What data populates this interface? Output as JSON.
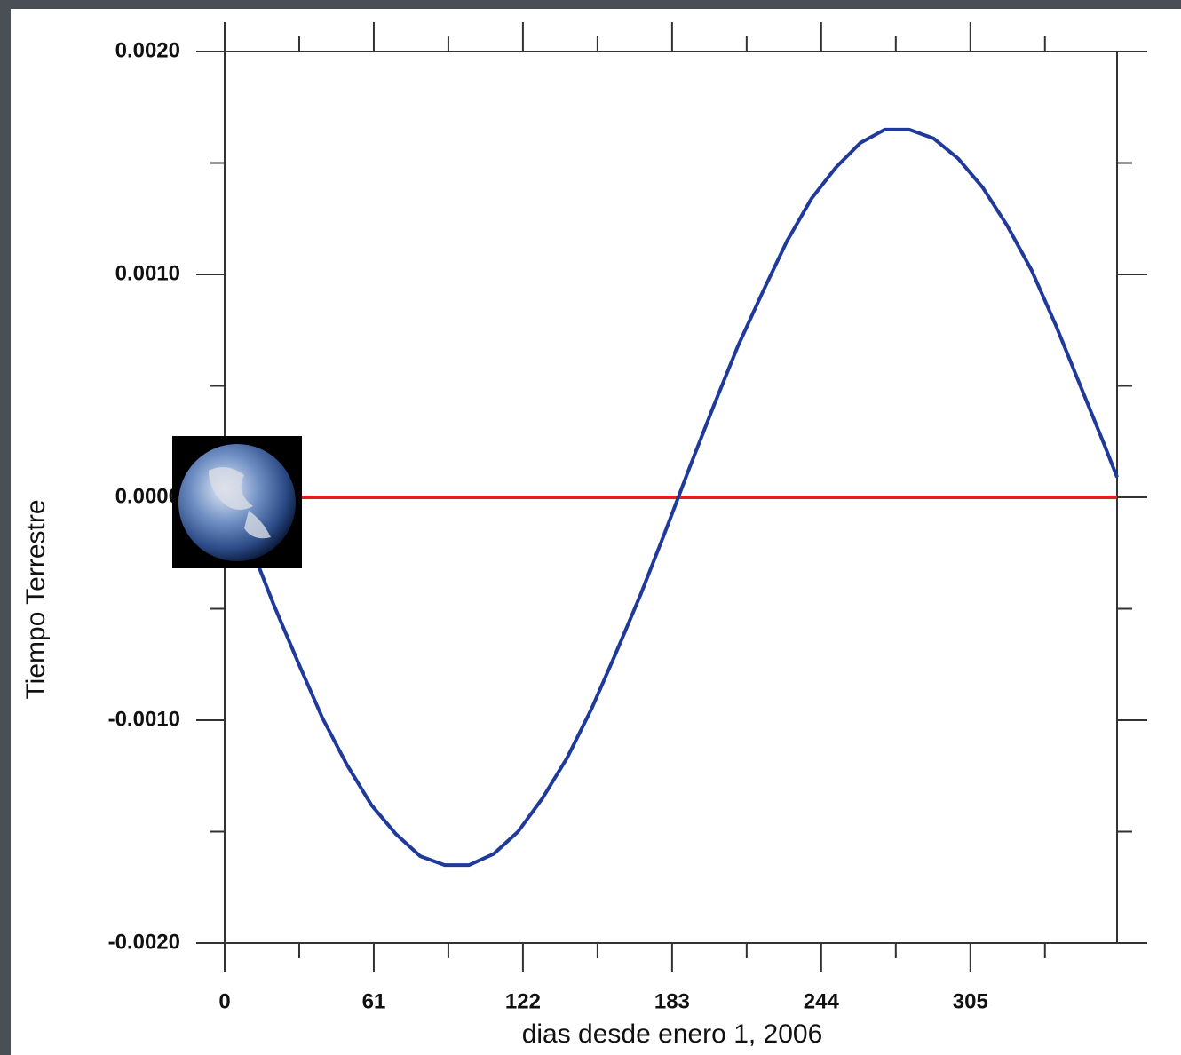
{
  "chart_data": {
    "type": "line",
    "ylabel": "Tiempo Terrestre",
    "xlabel": "dias desde enero 1, 2006",
    "xlim": [
      0,
      365
    ],
    "ylim": [
      -0.002,
      0.002
    ],
    "xticks": [
      0,
      61,
      122,
      183,
      244,
      305
    ],
    "xminorticks": [
      30.5,
      91.5,
      152.5,
      213.5,
      274.5,
      335.5
    ],
    "yticks": [
      {
        "value": -0.002,
        "label": "-0.0020"
      },
      {
        "value": -0.001,
        "label": "-0.0010"
      },
      {
        "value": 0,
        "label": "0.0000"
      },
      {
        "value": 0.001,
        "label": "0.0010"
      },
      {
        "value": 0.002,
        "label": "0.0020"
      }
    ],
    "yminorticks": [
      -0.0015,
      -0.0005,
      0.0005,
      0.0015
    ],
    "series": [
      {
        "color": "#1f3a9a",
        "x": [
          0,
          10,
          20,
          30,
          40,
          50,
          60,
          70,
          80,
          90,
          100,
          110,
          120,
          130,
          140,
          150,
          160,
          170,
          180,
          190,
          200,
          210,
          220,
          230,
          240,
          250,
          260,
          270,
          280,
          290,
          300,
          310,
          320,
          330,
          340,
          350,
          360,
          365
        ],
        "values": [
          9e-05,
          -0.0002,
          -0.00048,
          -0.00074,
          -0.00099,
          -0.0012,
          -0.00138,
          -0.00151,
          -0.00161,
          -0.00165,
          -0.00165,
          -0.0016,
          -0.0015,
          -0.00135,
          -0.00117,
          -0.00095,
          -0.0007,
          -0.00044,
          -0.00016,
          0.00013,
          0.00041,
          0.00068,
          0.00092,
          0.00115,
          0.00134,
          0.00148,
          0.00159,
          0.00165,
          0.00165,
          0.00161,
          0.00152,
          0.00139,
          0.00122,
          0.00102,
          0.00077,
          0.0005,
          0.00023,
          9e-05
        ]
      },
      {
        "color": "#e02020",
        "x": [
          0,
          365
        ],
        "values": [
          0,
          0
        ]
      }
    ]
  }
}
